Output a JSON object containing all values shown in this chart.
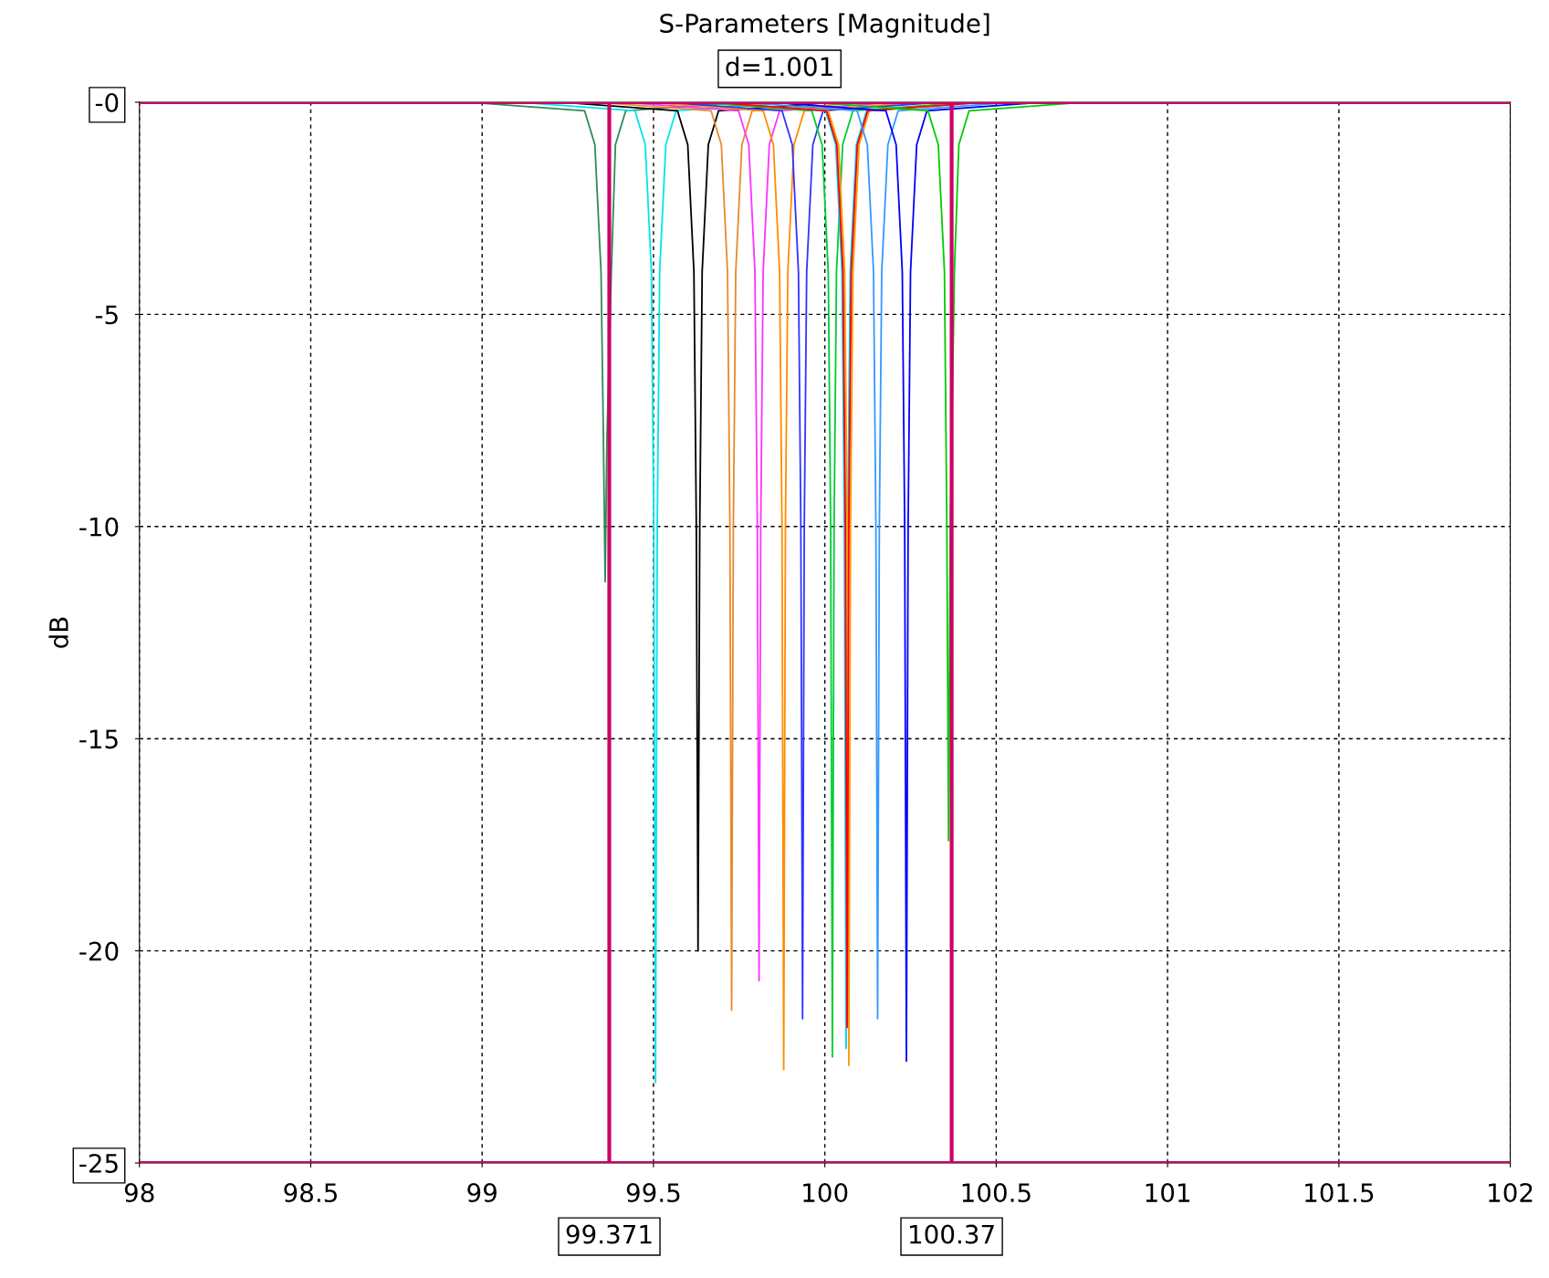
{
  "chart_data": {
    "type": "line",
    "title": "S-Parameters [Magnitude]",
    "ylabel": "dB",
    "xlim": [
      98,
      102
    ],
    "ylim": [
      -25,
      0
    ],
    "xticks": [
      98,
      98.5,
      99,
      99.5,
      100,
      100.5,
      101,
      101.5,
      102
    ],
    "yticks": [
      {
        "value": 0,
        "label": "-0"
      },
      -5,
      -10,
      -15,
      -20,
      -25
    ],
    "grid": true,
    "line_style": "solid",
    "marker": "none",
    "annotations": [
      "d=1.001"
    ],
    "ref_lines": [
      {
        "axis": "x",
        "value": 99.371,
        "label": "99.371",
        "color": "#cc0066"
      },
      {
        "axis": "x",
        "value": 100.37,
        "label": "100.37",
        "color": "#cc0066"
      },
      {
        "axis": "y",
        "value": 0,
        "color": "#cc0066"
      },
      {
        "axis": "y",
        "value": -25,
        "color": "#cc0066"
      }
    ],
    "series": [
      {
        "color": "#2e8b57",
        "x": [
          98.959,
          99.299,
          99.329,
          99.347,
          99.354,
          99.359,
          99.364,
          99.377,
          99.389,
          99.419,
          99.759
        ],
        "values": [
          0,
          -0.2,
          -1,
          -4,
          -8,
          -11.3,
          -8,
          -4,
          -1,
          -0.2,
          0
        ]
      },
      {
        "color": "#00e5ee",
        "x": [
          99.106,
          99.446,
          99.476,
          99.494,
          99.501,
          99.506,
          99.511,
          99.518,
          99.536,
          99.566,
          99.906
        ],
        "values": [
          0,
          -0.2,
          -1,
          -4,
          -10,
          -23.1,
          -10,
          -4,
          -1,
          -0.2,
          0
        ]
      },
      {
        "color": "#000000",
        "x": [
          99.23,
          99.57,
          99.6,
          99.618,
          99.625,
          99.63,
          99.635,
          99.642,
          99.66,
          99.69,
          100.03
        ],
        "values": [
          0,
          -0.2,
          -1,
          -4,
          -10,
          -20,
          -10,
          -4,
          -1,
          -0.2,
          0
        ]
      },
      {
        "color": "#e8892b",
        "x": [
          99.328,
          99.668,
          99.698,
          99.716,
          99.723,
          99.728,
          99.733,
          99.74,
          99.758,
          99.788,
          100.128
        ],
        "values": [
          0,
          -0.2,
          -1,
          -4,
          -10,
          -21.4,
          -10,
          -4,
          -1,
          -0.2,
          0
        ]
      },
      {
        "color": "#ff33ff",
        "x": [
          99.408,
          99.748,
          99.778,
          99.796,
          99.803,
          99.808,
          99.813,
          99.82,
          99.838,
          99.868,
          100.208
        ],
        "values": [
          0,
          -0.2,
          -1,
          -4,
          -10,
          -20.7,
          -10,
          -4,
          -1,
          -0.2,
          0
        ]
      },
      {
        "color": "#ff8c00",
        "x": [
          99.48,
          99.82,
          99.85,
          99.868,
          99.875,
          99.88,
          99.885,
          99.892,
          99.91,
          99.94,
          100.28
        ],
        "values": [
          0,
          -0.2,
          -1,
          -4,
          -10,
          -22.8,
          -10,
          -4,
          -1,
          -0.2,
          0
        ]
      },
      {
        "color": "#3333ff",
        "x": [
          99.535,
          99.875,
          99.905,
          99.923,
          99.93,
          99.935,
          99.94,
          99.947,
          99.965,
          99.995,
          100.335
        ],
        "values": [
          0,
          -0.2,
          -1,
          -4,
          -10,
          -21.6,
          -10,
          -4,
          -1,
          -0.2,
          0
        ]
      },
      {
        "color": "#00cc33",
        "x": [
          99.622,
          99.962,
          99.992,
          100.01,
          100.017,
          100.022,
          100.027,
          100.034,
          100.052,
          100.082,
          100.422
        ],
        "values": [
          0,
          -0.2,
          -1,
          -4,
          -10,
          -22.5,
          -10,
          -4,
          -1,
          -0.2,
          0
        ]
      },
      {
        "color": "#00ccff",
        "x": [
          99.662,
          100.002,
          100.032,
          100.05,
          100.057,
          100.062,
          100.067,
          100.074,
          100.092,
          100.122,
          100.462
        ],
        "values": [
          0,
          -0.2,
          -1,
          -4,
          -10,
          -22.3,
          -10,
          -4,
          -1,
          -0.2,
          0
        ]
      },
      {
        "color": "#ff9900",
        "x": [
          99.67,
          100.01,
          100.04,
          100.058,
          100.065,
          100.07,
          100.075,
          100.082,
          100.1,
          100.13,
          100.47
        ],
        "values": [
          0,
          -0.2,
          -1,
          -4,
          -10,
          -22.7,
          -10,
          -4,
          -1,
          -0.2,
          0
        ]
      },
      {
        "color": "#ff0000",
        "x": [
          99.665,
          100.005,
          100.035,
          100.053,
          100.06,
          100.065,
          100.07,
          100.077,
          100.095,
          100.125,
          100.465
        ],
        "values": [
          0,
          -0.2,
          -1,
          -4,
          -10,
          -21.8,
          -10,
          -4,
          -1,
          -0.2,
          0
        ]
      },
      {
        "color": "#3399ff",
        "x": [
          99.754,
          100.094,
          100.124,
          100.142,
          100.149,
          100.154,
          100.159,
          100.166,
          100.184,
          100.214,
          100.554
        ],
        "values": [
          0,
          -0.2,
          -1,
          -4,
          -10,
          -21.6,
          -10,
          -4,
          -1,
          -0.2,
          0
        ]
      },
      {
        "color": "#0000ff",
        "x": [
          99.838,
          100.178,
          100.208,
          100.226,
          100.233,
          100.238,
          100.243,
          100.25,
          100.268,
          100.298,
          100.638
        ],
        "values": [
          0,
          -0.2,
          -1,
          -4,
          -10,
          -22.6,
          -10,
          -4,
          -1,
          -0.2,
          0
        ]
      },
      {
        "color": "#00cc00",
        "x": [
          99.961,
          100.301,
          100.331,
          100.349,
          100.356,
          100.361,
          100.366,
          100.378,
          100.391,
          100.421,
          100.761
        ],
        "values": [
          0,
          -0.2,
          -1,
          -4,
          -10,
          -17.4,
          -10,
          -4,
          -1,
          -0.2,
          0
        ]
      }
    ]
  }
}
